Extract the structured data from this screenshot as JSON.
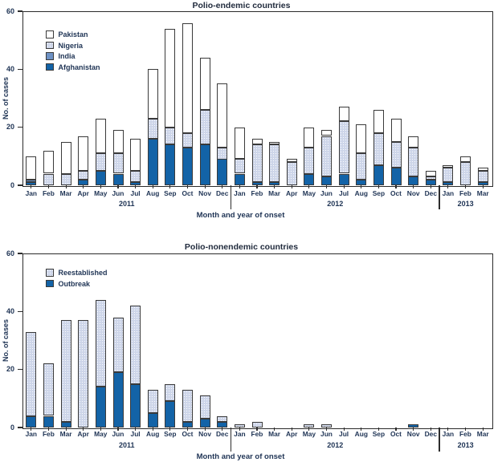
{
  "figure": {
    "background": "#ffffff",
    "text_color": "#1e3354",
    "outline_color": "#3a3a3a",
    "axis_color": "#2b2b2b"
  },
  "chart_data": [
    {
      "type": "stacked-bar",
      "title": "Polio-endemic countries",
      "ylabel": "No. of cases",
      "xlabel": "Month and year of onset",
      "ylim": [
        0,
        60
      ],
      "yticks": [
        0,
        20,
        40,
        60
      ],
      "grid": false,
      "legend_position": "upper-left-inside",
      "months": [
        "Jan",
        "Feb",
        "Mar",
        "Apr",
        "May",
        "Jun",
        "Jul",
        "Aug",
        "Sep",
        "Oct",
        "Nov",
        "Dec",
        "Jan",
        "Feb",
        "Mar",
        "Apr",
        "May",
        "Jun",
        "Jul",
        "Aug",
        "Sep",
        "Oct",
        "Nov",
        "Dec",
        "Jan",
        "Feb",
        "Mar"
      ],
      "years": [
        {
          "label": "2011",
          "span": [
            0,
            11
          ]
        },
        {
          "label": "2012",
          "span": [
            12,
            23
          ]
        },
        {
          "label": "2013",
          "span": [
            24,
            26
          ]
        }
      ],
      "series": [
        {
          "name": "Afghanistan",
          "color": "#1363a7",
          "texture": "solid",
          "values": [
            1,
            0,
            0,
            2,
            5,
            4,
            1,
            16,
            14,
            13,
            14,
            9,
            4,
            1,
            1,
            0,
            4,
            3,
            4,
            2,
            7,
            6,
            3,
            2,
            1,
            0,
            1
          ]
        },
        {
          "name": "India",
          "color": "#6e92c5",
          "texture": "solid",
          "values": [
            1,
            0,
            0,
            0,
            0,
            0,
            0,
            0,
            0,
            0,
            0,
            0,
            0,
            0,
            0,
            0,
            0,
            0,
            0,
            0,
            0,
            0,
            0,
            0,
            0,
            0,
            0
          ]
        },
        {
          "name": "Nigeria",
          "color": "#cdd5e9",
          "texture": "dotted",
          "values": [
            0,
            4,
            4,
            3,
            6,
            7,
            4,
            7,
            6,
            5,
            12,
            4,
            5,
            13,
            13,
            8,
            9,
            14,
            18,
            9,
            11,
            9,
            10,
            1,
            5,
            8,
            4
          ]
        },
        {
          "name": "Pakistan",
          "color": "#ffffff",
          "texture": "solid",
          "values": [
            8,
            8,
            11,
            12,
            12,
            8,
            11,
            17,
            34,
            38,
            18,
            22,
            11,
            2,
            1,
            1,
            7,
            2,
            5,
            10,
            8,
            8,
            4,
            2,
            1,
            2,
            1
          ]
        }
      ],
      "totals": [
        10,
        12,
        15,
        17,
        23,
        19,
        16,
        40,
        54,
        56,
        44,
        35,
        20,
        16,
        15,
        9,
        20,
        19,
        27,
        21,
        26,
        23,
        17,
        5,
        7,
        10,
        6
      ],
      "legend": [
        {
          "label": "Pakistan",
          "color": "#ffffff",
          "texture": "solid"
        },
        {
          "label": "Nigeria",
          "color": "#cdd5e9",
          "texture": "dotted"
        },
        {
          "label": "India",
          "color": "#6e92c5",
          "texture": "solid"
        },
        {
          "label": "Afghanistan",
          "color": "#1363a7",
          "texture": "solid"
        }
      ]
    },
    {
      "type": "stacked-bar",
      "title": "Polio-nonendemic countries",
      "ylabel": "No. of cases",
      "xlabel": "Month and year of onset",
      "ylim": [
        0,
        60
      ],
      "yticks": [
        0,
        20,
        40,
        60
      ],
      "grid": false,
      "legend_position": "upper-left-inside",
      "months": [
        "Jan",
        "Feb",
        "Mar",
        "Apr",
        "May",
        "Jun",
        "Jul",
        "Aug",
        "Sep",
        "Oct",
        "Nov",
        "Dec",
        "Jan",
        "Feb",
        "Mar",
        "Apr",
        "May",
        "Jun",
        "Jul",
        "Aug",
        "Sep",
        "Oct",
        "Nov",
        "Dec",
        "Jan",
        "Feb",
        "Mar"
      ],
      "years": [
        {
          "label": "2011",
          "span": [
            0,
            11
          ]
        },
        {
          "label": "2012",
          "span": [
            12,
            23
          ]
        },
        {
          "label": "2013",
          "span": [
            24,
            26
          ]
        }
      ],
      "series": [
        {
          "name": "Outbreak",
          "color": "#1363a7",
          "texture": "solid",
          "values": [
            4,
            4,
            2,
            0,
            14,
            19,
            15,
            5,
            9,
            2,
            3,
            2,
            0,
            0,
            0,
            0,
            0,
            0,
            0,
            0,
            0,
            0,
            1,
            0,
            0,
            0,
            0
          ]
        },
        {
          "name": "Reestablished",
          "color": "#cdd5e9",
          "texture": "dotted",
          "values": [
            29,
            18,
            35,
            37,
            30,
            19,
            27,
            8,
            6,
            11,
            8,
            2,
            1,
            2,
            0,
            0,
            1,
            1,
            0,
            0,
            0,
            0,
            0,
            0,
            0,
            0,
            0
          ]
        }
      ],
      "totals": [
        33,
        22,
        37,
        37,
        44,
        38,
        42,
        13,
        15,
        13,
        11,
        4,
        1,
        2,
        0,
        0,
        1,
        1,
        0,
        0,
        0,
        0,
        1,
        0,
        0,
        0,
        0
      ],
      "legend": [
        {
          "label": "Reestablished",
          "color": "#cdd5e9",
          "texture": "dotted"
        },
        {
          "label": "Outbreak",
          "color": "#1363a7",
          "texture": "solid"
        }
      ]
    }
  ]
}
